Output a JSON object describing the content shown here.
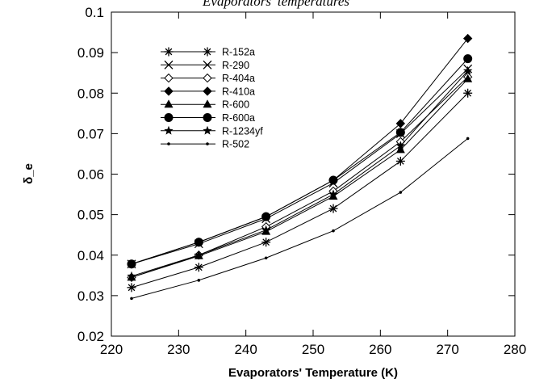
{
  "chart_data": {
    "type": "line",
    "title": "Evaporators' temperatures",
    "xlabel": "Evaporators' Temperature (K)",
    "ylabel": "δ_e",
    "xlim": [
      220,
      280
    ],
    "ylim": [
      0.02,
      0.1
    ],
    "xticks": [
      "220",
      "230",
      "240",
      "250",
      "260",
      "270",
      "280"
    ],
    "yticks": [
      "0.02",
      "0.03",
      "0.04",
      "0.05",
      "0.06",
      "0.07",
      "0.08",
      "0.09",
      "0.1"
    ],
    "grid": false,
    "legend_position": "top-left",
    "x": [
      223,
      233,
      243,
      253,
      263,
      273
    ],
    "series": [
      {
        "name": "R-152a",
        "marker": "asterisk",
        "values": [
          0.032,
          0.037,
          0.0432,
          0.0515,
          0.0632,
          0.08
        ]
      },
      {
        "name": "R-290",
        "marker": "x",
        "values": [
          0.0378,
          0.0428,
          0.049,
          0.0578,
          0.07,
          0.086
        ]
      },
      {
        "name": "R-404a",
        "marker": "diamond-open",
        "values": [
          0.0345,
          0.04,
          0.047,
          0.0558,
          0.068,
          0.084
        ]
      },
      {
        "name": "R-410a",
        "marker": "diamond-filled",
        "values": [
          0.0378,
          0.0432,
          0.0495,
          0.0585,
          0.0725,
          0.0935
        ]
      },
      {
        "name": "R-600",
        "marker": "triangle",
        "values": [
          0.0345,
          0.0398,
          0.0458,
          0.0545,
          0.066,
          0.0835
        ]
      },
      {
        "name": "R-600a",
        "marker": "circle",
        "values": [
          0.0378,
          0.0432,
          0.0495,
          0.0585,
          0.0703,
          0.0885
        ]
      },
      {
        "name": "R-1234yf",
        "marker": "star",
        "values": [
          0.0348,
          0.04,
          0.0462,
          0.055,
          0.067,
          0.0855
        ]
      },
      {
        "name": "R-502",
        "marker": "dot",
        "values": [
          0.0293,
          0.0338,
          0.0393,
          0.046,
          0.0555,
          0.0688
        ]
      }
    ]
  }
}
